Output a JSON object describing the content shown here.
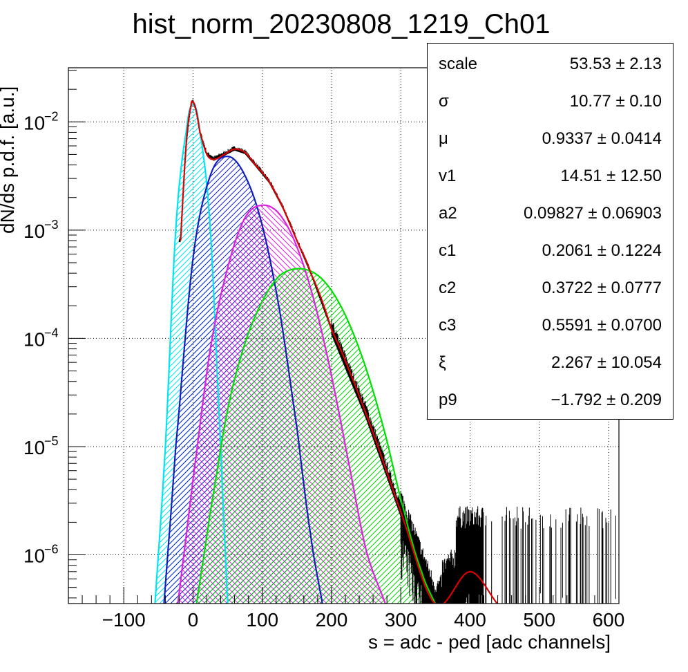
{
  "chart_data": {
    "type": "line",
    "title": "hist_norm_20230808_1219_Ch01",
    "xlabel": "s = adc - ped [adc channels]",
    "ylabel": "dN/ds p.d.f. [a.u.]",
    "xlim": [
      -180,
      615
    ],
    "ylim_log10": [
      -6.45,
      -1.5
    ],
    "yscale": "log",
    "grid": true,
    "x_ticks": [
      -100,
      0,
      100,
      200,
      300,
      400,
      500,
      600
    ],
    "x_tick_labels": [
      "−100",
      "0",
      "100",
      "200",
      "300",
      "400",
      "500",
      "600"
    ],
    "y_ticks": [
      {
        "value": 0.01,
        "mantissa": "10",
        "exp": "−2"
      },
      {
        "value": 0.001,
        "mantissa": "10",
        "exp": "−3"
      },
      {
        "value": 0.0001,
        "mantissa": "10",
        "exp": "−4"
      },
      {
        "value": 1e-05,
        "mantissa": "10",
        "exp": "−5"
      },
      {
        "value": 1e-06,
        "mantissa": "10",
        "exp": "−6"
      }
    ],
    "series": [
      {
        "color": "#00e5ee",
        "role": "component-0",
        "x": [
          -55,
          -40,
          -25,
          -10,
          0,
          10,
          25,
          40,
          50
        ],
        "y": [
          3.5e-07,
          1e-05,
          0.001,
          0.008,
          0.0148,
          0.008,
          0.001,
          1e-05,
          3.5e-07
        ]
      },
      {
        "color": "#1020c0",
        "role": "component-1",
        "x": [
          -42,
          -25,
          0,
          25,
          50,
          75,
          100,
          125,
          150,
          170,
          187
        ],
        "y": [
          3.5e-07,
          1e-05,
          0.00055,
          0.0032,
          0.0048,
          0.0032,
          0.0011,
          0.00018,
          1.5e-05,
          1.5e-06,
          3.5e-07
        ]
      },
      {
        "color": "#e020e0",
        "role": "component-2",
        "x": [
          -22,
          0,
          25,
          50,
          75,
          100,
          125,
          150,
          175,
          200,
          225,
          250,
          278
        ],
        "y": [
          3.5e-07,
          5e-06,
          8e-05,
          0.00045,
          0.0013,
          0.0017,
          0.0014,
          0.0007,
          0.00022,
          4.5e-05,
          7e-06,
          1.1e-06,
          3.5e-07
        ]
      },
      {
        "color": "#00e000",
        "role": "component-3",
        "x": [
          5,
          25,
          50,
          75,
          100,
          125,
          155,
          185,
          215,
          245,
          275,
          305,
          330,
          350
        ],
        "y": [
          3.5e-07,
          2.5e-06,
          2.2e-05,
          9e-05,
          0.00022,
          0.00038,
          0.00044,
          0.00036,
          0.00019,
          6.5e-05,
          1.5e-05,
          2.5e-06,
          7e-07,
          3.5e-07
        ]
      },
      {
        "color": "#dd0000",
        "role": "total-fit",
        "x": [
          -18,
          -10,
          -3,
          0,
          4,
          10,
          20,
          30,
          45,
          60,
          75,
          90,
          110,
          130,
          150,
          170,
          200,
          250,
          300,
          350,
          400,
          440
        ],
        "y": [
          0.0008,
          0.006,
          0.014,
          0.0152,
          0.013,
          0.008,
          0.005,
          0.0045,
          0.005,
          0.0056,
          0.0052,
          0.004,
          0.0028,
          0.0016,
          0.0008,
          0.0004,
          0.00012,
          2e-05,
          2.5e-06,
          3.5e-07,
          7e-07,
          3.5e-07
        ]
      }
    ],
    "stats": [
      {
        "name": "scale",
        "value": "53.53 ± 2.13"
      },
      {
        "name": "σ",
        "value": "10.77 ± 0.10"
      },
      {
        "name": "μ",
        "value": "0.9337 ± 0.0414"
      },
      {
        "name": "v1",
        "value": "14.51 ± 12.50"
      },
      {
        "name": "a2",
        "value": "0.09827 ± 0.06903"
      },
      {
        "name": "c1",
        "value": "0.2061 ± 0.1224"
      },
      {
        "name": "c2",
        "value": "0.3722 ± 0.0777"
      },
      {
        "name": "c3",
        "value": "0.5591 ± 0.0700"
      },
      {
        "name": "ξ",
        "value": "2.267 ± 10.054"
      },
      {
        "name": "p9",
        "value": "−1.792 ± 0.209"
      }
    ]
  }
}
